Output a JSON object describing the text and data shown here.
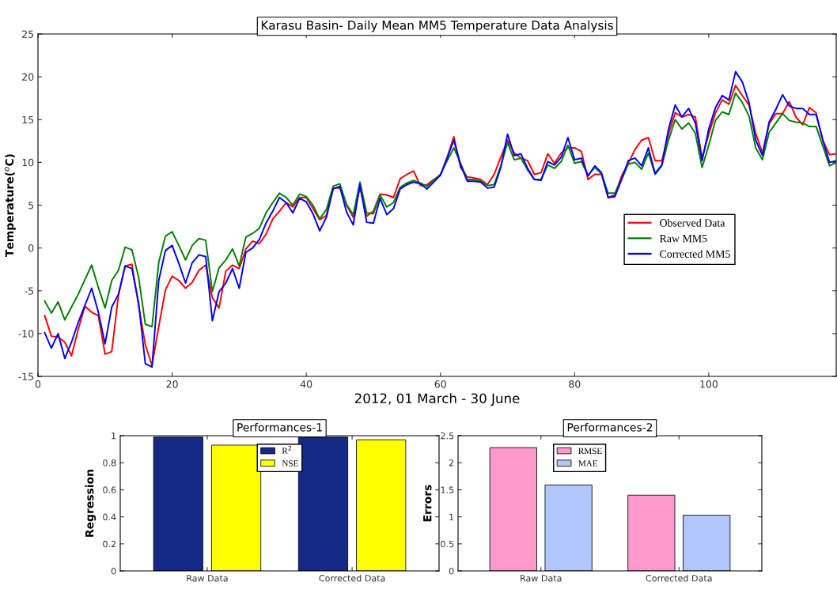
{
  "chart_data": [
    {
      "type": "line",
      "title": "Karasu Basin- Daily Mean MM5 Temperature Data Analysis",
      "xlabel": "2012, 01 March - 30 June",
      "ylabel": "Temperature($^{o}$C)",
      "x": [
        1,
        2,
        3,
        4,
        5,
        6,
        7,
        8,
        9,
        10,
        11,
        12,
        13,
        14,
        15,
        16,
        17,
        18,
        19,
        20,
        21,
        22,
        23,
        24,
        25,
        26,
        27,
        28,
        29,
        30,
        31,
        32,
        33,
        34,
        35,
        36,
        37,
        38,
        39,
        40,
        41,
        42,
        43,
        44,
        45,
        46,
        47,
        48,
        49,
        50,
        51,
        52,
        53,
        54,
        55,
        56,
        57,
        58,
        59,
        60,
        61,
        62,
        63,
        64,
        65,
        66,
        67,
        68,
        69,
        70,
        71,
        72,
        73,
        74,
        75,
        76,
        77,
        78,
        79,
        80,
        81,
        82,
        83,
        84,
        85,
        86,
        87,
        88,
        89,
        90,
        91,
        92,
        93,
        94,
        95,
        96,
        97,
        98,
        99,
        100,
        101,
        102,
        103,
        104,
        105,
        106,
        107,
        108,
        109,
        110,
        111,
        112,
        113,
        114,
        115,
        116,
        117,
        118,
        119
      ],
      "series": [
        {
          "name": "Observed Data",
          "color": "#ff0000",
          "values": [
            -7.9,
            -10.3,
            -10.4,
            -11.0,
            -12.6,
            -9.5,
            -6.8,
            -7.5,
            -7.9,
            -12.4,
            -12.1,
            -5.5,
            -2.1,
            -1.9,
            -6.7,
            -11.3,
            -13.7,
            -9.2,
            -4.9,
            -3.3,
            -3.8,
            -4.7,
            -4.0,
            -2.6,
            -2.0,
            -5.8,
            -7.0,
            -2.7,
            -2.0,
            -2.4,
            -0.1,
            0.8,
            0.5,
            1.6,
            3.4,
            4.3,
            5.3,
            4.8,
            5.9,
            5.9,
            4.6,
            3.3,
            3.8,
            7.0,
            7.0,
            5.0,
            3.6,
            7.1,
            3.7,
            4.3,
            6.3,
            6.2,
            5.9,
            8.1,
            8.6,
            9.0,
            7.3,
            7.4,
            8.0,
            8.5,
            10.6,
            13.0,
            9.4,
            8.3,
            8.2,
            8.0,
            7.4,
            8.6,
            10.6,
            12.6,
            11.1,
            10.5,
            10.2,
            8.6,
            8.8,
            11.0,
            9.9,
            11.1,
            11.7,
            11.7,
            11.3,
            8.0,
            8.6,
            8.6,
            5.9,
            6.2,
            8.4,
            9.9,
            11.5,
            12.6,
            12.9,
            10.2,
            10.2,
            13.3,
            15.8,
            15.3,
            15.6,
            15.3,
            10.5,
            13.3,
            15.8,
            17.3,
            16.8,
            19.0,
            17.8,
            16.7,
            13.4,
            11.1,
            14.5,
            15.7,
            15.7,
            17.1,
            15.3,
            14.4,
            16.4,
            15.8,
            12.6,
            10.9,
            11.0
          ]
        },
        {
          "name": "Raw MM5",
          "color": "#008000",
          "values": [
            -6.2,
            -7.6,
            -6.3,
            -8.4,
            -6.9,
            -5.4,
            -3.7,
            -2.0,
            -4.6,
            -7.0,
            -3.8,
            -2.6,
            0.1,
            -0.2,
            -3.4,
            -8.9,
            -9.2,
            -1.7,
            1.4,
            1.9,
            0.3,
            -1.4,
            0.3,
            1.1,
            0.9,
            -5.1,
            -2.3,
            -1.4,
            -0.1,
            -2.1,
            1.3,
            1.7,
            2.3,
            4.1,
            5.3,
            6.4,
            5.9,
            5.0,
            6.3,
            6.0,
            5.0,
            3.4,
            4.5,
            7.2,
            7.5,
            5.1,
            3.9,
            7.7,
            4.1,
            4.0,
            6.2,
            4.8,
            5.3,
            7.1,
            7.6,
            7.9,
            7.6,
            7.2,
            7.9,
            8.6,
            10.2,
            11.7,
            9.9,
            8.0,
            8.0,
            7.8,
            7.3,
            7.4,
            9.6,
            12.3,
            10.3,
            10.5,
            9.1,
            8.0,
            8.0,
            9.7,
            9.3,
            10.1,
            12.0,
            9.9,
            10.1,
            8.5,
            9.4,
            8.7,
            6.4,
            6.4,
            8.0,
            9.8,
            10.0,
            9.2,
            11.1,
            8.6,
            9.6,
            12.6,
            15.0,
            13.9,
            14.6,
            13.4,
            9.4,
            12.0,
            14.9,
            15.9,
            15.6,
            18.1,
            17.0,
            15.4,
            11.7,
            10.3,
            13.5,
            14.6,
            15.7,
            14.9,
            14.7,
            14.6,
            14.2,
            14.2,
            11.9,
            9.6,
            10.0
          ]
        },
        {
          "name": "Corrected MM5",
          "color": "#0000ff",
          "values": [
            -9.9,
            -11.7,
            -10.0,
            -12.9,
            -11.0,
            -8.7,
            -6.7,
            -4.7,
            -7.5,
            -11.2,
            -6.9,
            -5.4,
            -2.1,
            -2.4,
            -6.4,
            -13.5,
            -13.9,
            -3.8,
            -0.3,
            0.3,
            -1.8,
            -4.1,
            -1.7,
            -0.8,
            -1.0,
            -8.5,
            -5.1,
            -4.1,
            -2.4,
            -4.7,
            -0.5,
            0.0,
            1.0,
            2.9,
            4.3,
            5.9,
            5.3,
            4.1,
            5.8,
            5.4,
            4.0,
            2.0,
            3.6,
            6.9,
            7.2,
            4.2,
            2.7,
            7.4,
            3.0,
            2.9,
            5.8,
            3.9,
            4.6,
            6.9,
            7.4,
            7.7,
            7.5,
            6.9,
            7.7,
            8.5,
            10.5,
            12.6,
            9.7,
            7.8,
            7.8,
            7.7,
            7.0,
            7.1,
            9.4,
            13.3,
            10.8,
            11.0,
            9.3,
            8.0,
            7.9,
            10.1,
            9.7,
            10.6,
            12.9,
            10.3,
            10.5,
            8.4,
            9.6,
            8.8,
            5.9,
            6.0,
            8.0,
            10.2,
            10.5,
            9.6,
            11.7,
            8.7,
            9.7,
            13.9,
            16.7,
            15.3,
            16.3,
            14.6,
            10.2,
            13.9,
            16.4,
            17.8,
            17.3,
            20.6,
            19.4,
            17.0,
            12.6,
            10.8,
            14.7,
            16.2,
            17.9,
            16.6,
            16.3,
            16.3,
            15.6,
            15.6,
            12.6,
            10.0,
            10.2
          ]
        }
      ],
      "xlim": [
        0,
        119
      ],
      "xticks": [
        0,
        20,
        40,
        60,
        80,
        100
      ],
      "ylim": [
        -15,
        25
      ],
      "yticks": [
        -15,
        -10,
        -5,
        0,
        5,
        10,
        15,
        20,
        25
      ],
      "legend": "right",
      "grid": false
    },
    {
      "type": "bar",
      "title": "Performances-1",
      "ylabel": "Regression",
      "categories": [
        "Raw Data",
        "Corrected Data"
      ],
      "series": [
        {
          "name": "R$^{2}$",
          "color": "#152a87",
          "values": [
            0.99,
            0.99
          ]
        },
        {
          "name": "NSE",
          "color": "#ffff00",
          "values": [
            0.93,
            0.97
          ]
        }
      ],
      "ylim": [
        0,
        1
      ],
      "yticks": [
        0,
        0.2,
        0.4,
        0.6,
        0.8,
        1
      ],
      "legend": "top",
      "grid": false
    },
    {
      "type": "bar",
      "title": "Performances-2",
      "ylabel": "Errors",
      "categories": [
        "Raw Data",
        "Corrected Data"
      ],
      "series": [
        {
          "name": "RMSE",
          "color": "#ff99cc",
          "values": [
            2.28,
            1.4
          ]
        },
        {
          "name": "MAE",
          "color": "#b3c7ff",
          "values": [
            1.59,
            1.03
          ]
        }
      ],
      "ylim": [
        0,
        2.5
      ],
      "yticks": [
        0,
        0.5,
        1,
        1.5,
        2,
        2.5
      ],
      "legend": "top left",
      "grid": false
    }
  ]
}
